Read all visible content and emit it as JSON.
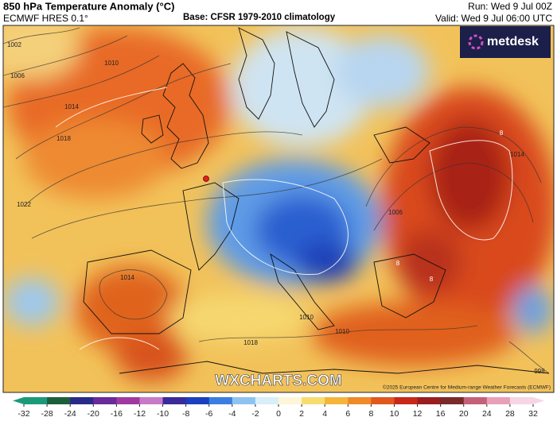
{
  "header": {
    "title": "850 hPa Temperature Anomaly (°C)",
    "model": "ECMWF HRES 0.1°",
    "base": "Base: CFSR 1979-2010 climatology",
    "run": "Run: Wed 9 Jul 00Z",
    "valid": "Valid: Wed 9 Jul 06:00 UTC"
  },
  "logo": "metdesk",
  "watermark": "WXCHARTS.COM",
  "copyright": "©2025 European Centre for Medium-range Weather Forecasts (ECMWF)",
  "isobar_labels": [
    "1002",
    "1006",
    "1010",
    "1014",
    "1018",
    "1022",
    "1014",
    "1010",
    "1006",
    "1014",
    "1018",
    "1010",
    "998",
    "8",
    "8",
    "8"
  ],
  "colorbar": {
    "ticks": [
      -32,
      -28,
      -24,
      -20,
      -16,
      -12,
      -10,
      -8,
      -6,
      -4,
      -2,
      0,
      2,
      4,
      6,
      8,
      10,
      12,
      16,
      20,
      24,
      28,
      32
    ],
    "colors": [
      "#1a9a7a",
      "#1d5e3a",
      "#2a2a8a",
      "#6a2a9a",
      "#a03aa0",
      "#c77ac8",
      "#3a2a9a",
      "#1a3fc0",
      "#3a7ee0",
      "#8ec3f0",
      "#d8eef8",
      "#fdf6d8",
      "#f8dc70",
      "#f5b43a",
      "#ee8a28",
      "#e0581e",
      "#c8281a",
      "#9a1e20",
      "#7a2a2a",
      "#c4607a",
      "#e8a0b8",
      "#f6d6e4"
    ]
  }
}
